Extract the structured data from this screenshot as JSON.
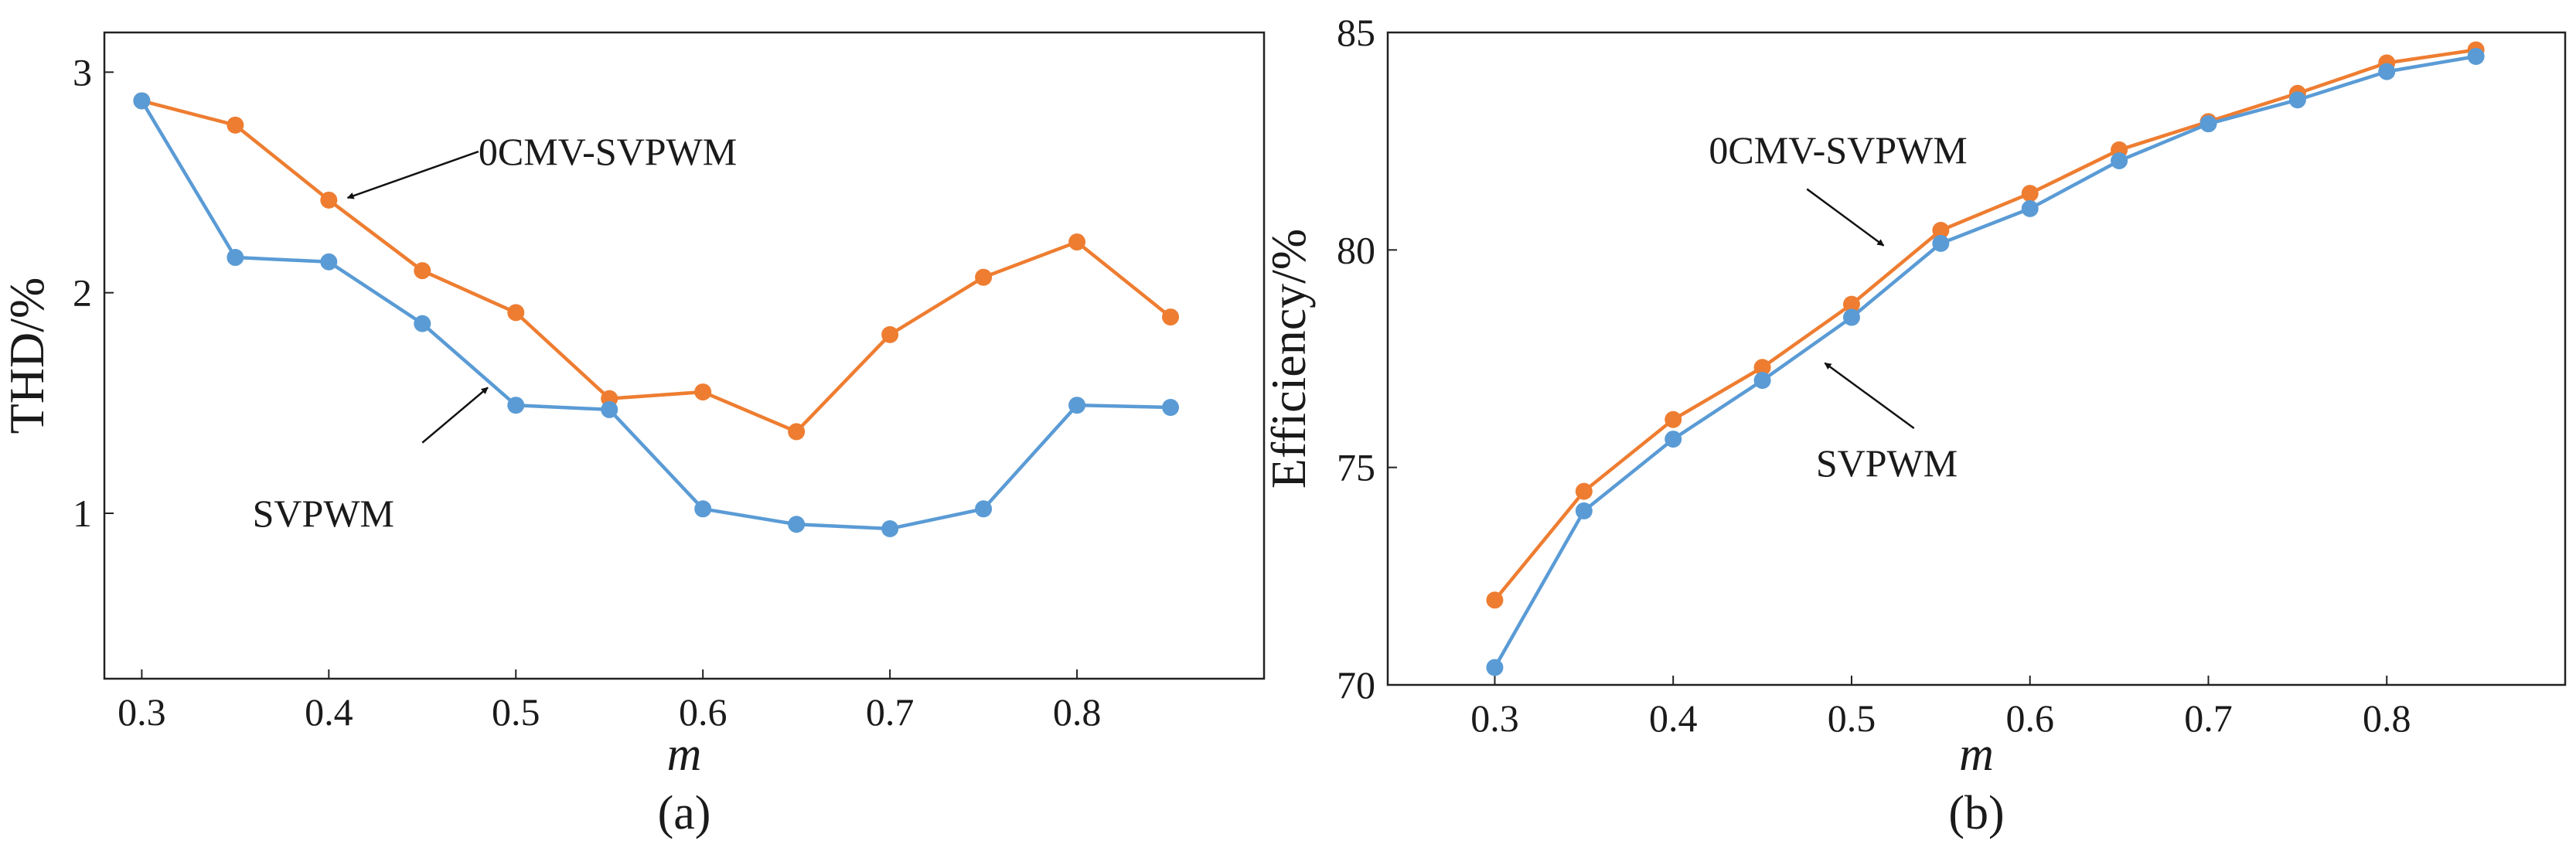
{
  "chart_data": [
    {
      "type": "line",
      "panel_label": "(a)",
      "xlabel": "m",
      "ylabel": "THD/%",
      "xlim": [
        0.28,
        0.9
      ],
      "ylim": [
        0.25,
        3.18
      ],
      "xticks": [
        0.3,
        0.4,
        0.5,
        0.6,
        0.7,
        0.8
      ],
      "xtick_labels": [
        "0.3",
        "0.4",
        "0.5",
        "0.6",
        "0.7",
        "0.8"
      ],
      "yticks": [
        1,
        2,
        3
      ],
      "ytick_labels": [
        "1",
        "2",
        "3"
      ],
      "grid": false,
      "x": [
        0.3,
        0.35,
        0.4,
        0.45,
        0.5,
        0.55,
        0.6,
        0.65,
        0.7,
        0.75,
        0.8,
        0.85
      ],
      "series": [
        {
          "name": "0CMV-SVPWM",
          "color": "#ee7d31",
          "values": [
            2.87,
            2.76,
            2.42,
            2.1,
            1.91,
            1.52,
            1.55,
            1.37,
            1.81,
            2.07,
            2.23,
            1.89
          ]
        },
        {
          "name": "SVPWM",
          "color": "#5a9bd5",
          "values": [
            2.87,
            2.16,
            2.14,
            1.86,
            1.49,
            1.47,
            1.02,
            0.95,
            0.93,
            1.02,
            1.49,
            1.48
          ]
        }
      ],
      "annotations": [
        {
          "text": "0CMV-SVPWM",
          "series": "0CMV-SVPWM",
          "arrow_from": [
            0.48,
            2.64
          ],
          "arrow_to": [
            0.41,
            2.43
          ],
          "text_at": [
            0.48,
            2.64
          ],
          "anchor": "start"
        },
        {
          "text": "SVPWM",
          "series": "SVPWM",
          "arrow_from": [
            0.45,
            1.32
          ],
          "arrow_to": [
            0.485,
            1.57
          ],
          "text_at": [
            0.435,
            1.0
          ],
          "anchor": "end"
        }
      ]
    },
    {
      "type": "line",
      "panel_label": "(b)",
      "xlabel": "m",
      "ylabel": "Efficiency/%",
      "xlim": [
        0.24,
        0.9
      ],
      "ylim": [
        70,
        85
      ],
      "xticks": [
        0.3,
        0.4,
        0.5,
        0.6,
        0.7,
        0.8
      ],
      "xtick_labels": [
        "0.3",
        "0.4",
        "0.5",
        "0.6",
        "0.7",
        "0.8"
      ],
      "yticks": [
        70,
        75,
        80,
        85
      ],
      "ytick_labels": [
        "70",
        "75",
        "80",
        "85"
      ],
      "grid": false,
      "x": [
        0.3,
        0.35,
        0.4,
        0.45,
        0.5,
        0.55,
        0.6,
        0.65,
        0.7,
        0.75,
        0.8,
        0.85
      ],
      "series": [
        {
          "name": "0CMV-SVPWM",
          "color": "#ee7d31",
          "values": [
            71.95,
            74.45,
            76.1,
            77.3,
            78.75,
            80.45,
            81.3,
            82.3,
            82.95,
            83.6,
            84.3,
            84.6
          ]
        },
        {
          "name": "SVPWM",
          "color": "#5a9bd5",
          "values": [
            70.4,
            74.0,
            75.65,
            77.0,
            78.45,
            80.15,
            80.95,
            82.05,
            82.9,
            83.45,
            84.1,
            84.45
          ]
        }
      ],
      "annotations": [
        {
          "text": "0CMV-SVPWM",
          "series": "0CMV-SVPWM",
          "arrow_from": [
            0.475,
            81.4
          ],
          "arrow_to": [
            0.518,
            80.1
          ],
          "text_at": [
            0.42,
            82.3
          ],
          "anchor": "start"
        },
        {
          "text": "SVPWM",
          "series": "SVPWM",
          "arrow_from": [
            0.535,
            75.9
          ],
          "arrow_to": [
            0.485,
            77.4
          ],
          "text_at": [
            0.48,
            75.1
          ],
          "anchor": "start"
        }
      ]
    }
  ]
}
